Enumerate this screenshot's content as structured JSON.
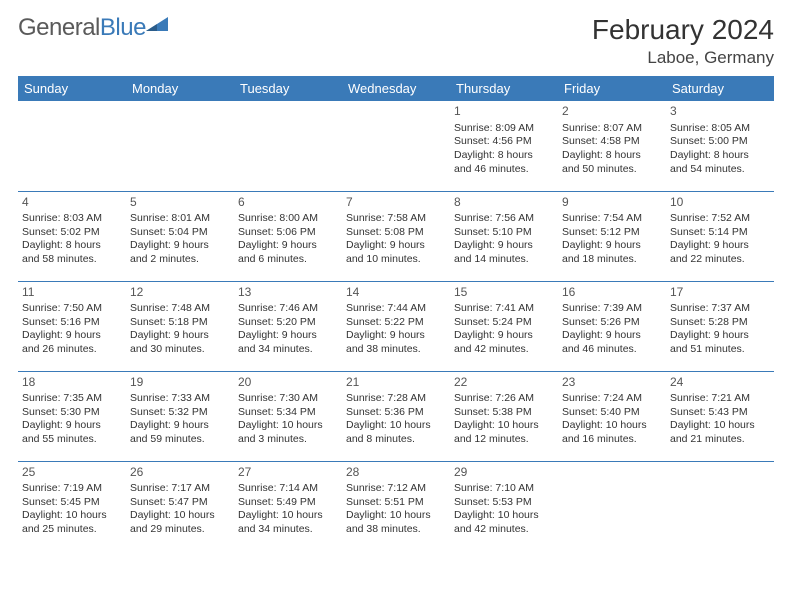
{
  "brand": {
    "part1": "General",
    "part2": "Blue"
  },
  "title": "February 2024",
  "location": "Laboe, Germany",
  "colors": {
    "accent": "#3a7ab8",
    "text": "#333333",
    "bg": "#ffffff"
  },
  "weekdays": [
    "Sunday",
    "Monday",
    "Tuesday",
    "Wednesday",
    "Thursday",
    "Friday",
    "Saturday"
  ],
  "weeks": [
    [
      null,
      null,
      null,
      null,
      {
        "n": "1",
        "sr": "8:09 AM",
        "ss": "4:56 PM",
        "dl1": "Daylight: 8 hours",
        "dl2": "and 46 minutes."
      },
      {
        "n": "2",
        "sr": "8:07 AM",
        "ss": "4:58 PM",
        "dl1": "Daylight: 8 hours",
        "dl2": "and 50 minutes."
      },
      {
        "n": "3",
        "sr": "8:05 AM",
        "ss": "5:00 PM",
        "dl1": "Daylight: 8 hours",
        "dl2": "and 54 minutes."
      }
    ],
    [
      {
        "n": "4",
        "sr": "8:03 AM",
        "ss": "5:02 PM",
        "dl1": "Daylight: 8 hours",
        "dl2": "and 58 minutes."
      },
      {
        "n": "5",
        "sr": "8:01 AM",
        "ss": "5:04 PM",
        "dl1": "Daylight: 9 hours",
        "dl2": "and 2 minutes."
      },
      {
        "n": "6",
        "sr": "8:00 AM",
        "ss": "5:06 PM",
        "dl1": "Daylight: 9 hours",
        "dl2": "and 6 minutes."
      },
      {
        "n": "7",
        "sr": "7:58 AM",
        "ss": "5:08 PM",
        "dl1": "Daylight: 9 hours",
        "dl2": "and 10 minutes."
      },
      {
        "n": "8",
        "sr": "7:56 AM",
        "ss": "5:10 PM",
        "dl1": "Daylight: 9 hours",
        "dl2": "and 14 minutes."
      },
      {
        "n": "9",
        "sr": "7:54 AM",
        "ss": "5:12 PM",
        "dl1": "Daylight: 9 hours",
        "dl2": "and 18 minutes."
      },
      {
        "n": "10",
        "sr": "7:52 AM",
        "ss": "5:14 PM",
        "dl1": "Daylight: 9 hours",
        "dl2": "and 22 minutes."
      }
    ],
    [
      {
        "n": "11",
        "sr": "7:50 AM",
        "ss": "5:16 PM",
        "dl1": "Daylight: 9 hours",
        "dl2": "and 26 minutes."
      },
      {
        "n": "12",
        "sr": "7:48 AM",
        "ss": "5:18 PM",
        "dl1": "Daylight: 9 hours",
        "dl2": "and 30 minutes."
      },
      {
        "n": "13",
        "sr": "7:46 AM",
        "ss": "5:20 PM",
        "dl1": "Daylight: 9 hours",
        "dl2": "and 34 minutes."
      },
      {
        "n": "14",
        "sr": "7:44 AM",
        "ss": "5:22 PM",
        "dl1": "Daylight: 9 hours",
        "dl2": "and 38 minutes."
      },
      {
        "n": "15",
        "sr": "7:41 AM",
        "ss": "5:24 PM",
        "dl1": "Daylight: 9 hours",
        "dl2": "and 42 minutes."
      },
      {
        "n": "16",
        "sr": "7:39 AM",
        "ss": "5:26 PM",
        "dl1": "Daylight: 9 hours",
        "dl2": "and 46 minutes."
      },
      {
        "n": "17",
        "sr": "7:37 AM",
        "ss": "5:28 PM",
        "dl1": "Daylight: 9 hours",
        "dl2": "and 51 minutes."
      }
    ],
    [
      {
        "n": "18",
        "sr": "7:35 AM",
        "ss": "5:30 PM",
        "dl1": "Daylight: 9 hours",
        "dl2": "and 55 minutes."
      },
      {
        "n": "19",
        "sr": "7:33 AM",
        "ss": "5:32 PM",
        "dl1": "Daylight: 9 hours",
        "dl2": "and 59 minutes."
      },
      {
        "n": "20",
        "sr": "7:30 AM",
        "ss": "5:34 PM",
        "dl1": "Daylight: 10 hours",
        "dl2": "and 3 minutes."
      },
      {
        "n": "21",
        "sr": "7:28 AM",
        "ss": "5:36 PM",
        "dl1": "Daylight: 10 hours",
        "dl2": "and 8 minutes."
      },
      {
        "n": "22",
        "sr": "7:26 AM",
        "ss": "5:38 PM",
        "dl1": "Daylight: 10 hours",
        "dl2": "and 12 minutes."
      },
      {
        "n": "23",
        "sr": "7:24 AM",
        "ss": "5:40 PM",
        "dl1": "Daylight: 10 hours",
        "dl2": "and 16 minutes."
      },
      {
        "n": "24",
        "sr": "7:21 AM",
        "ss": "5:43 PM",
        "dl1": "Daylight: 10 hours",
        "dl2": "and 21 minutes."
      }
    ],
    [
      {
        "n": "25",
        "sr": "7:19 AM",
        "ss": "5:45 PM",
        "dl1": "Daylight: 10 hours",
        "dl2": "and 25 minutes."
      },
      {
        "n": "26",
        "sr": "7:17 AM",
        "ss": "5:47 PM",
        "dl1": "Daylight: 10 hours",
        "dl2": "and 29 minutes."
      },
      {
        "n": "27",
        "sr": "7:14 AM",
        "ss": "5:49 PM",
        "dl1": "Daylight: 10 hours",
        "dl2": "and 34 minutes."
      },
      {
        "n": "28",
        "sr": "7:12 AM",
        "ss": "5:51 PM",
        "dl1": "Daylight: 10 hours",
        "dl2": "and 38 minutes."
      },
      {
        "n": "29",
        "sr": "7:10 AM",
        "ss": "5:53 PM",
        "dl1": "Daylight: 10 hours",
        "dl2": "and 42 minutes."
      },
      null,
      null
    ]
  ],
  "labels": {
    "sunrise": "Sunrise: ",
    "sunset": "Sunset: "
  }
}
